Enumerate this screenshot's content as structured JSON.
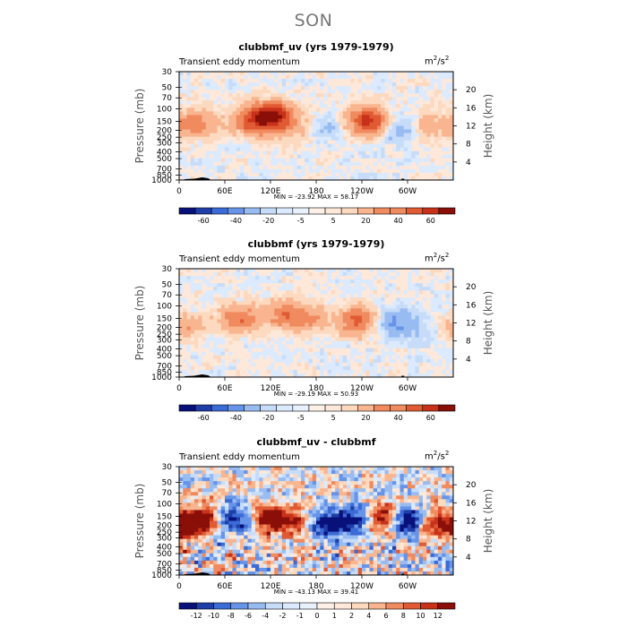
{
  "page": {
    "title": "SON"
  },
  "colors": {
    "blues": [
      "#08107a",
      "#1f3ea8",
      "#3b6bd6",
      "#6794e8",
      "#98bcf2",
      "#c6dcf9"
    ],
    "reds": [
      "#fcd9bf",
      "#f8b58f",
      "#f08a5f",
      "#e05a33",
      "#c8311a",
      "#8a0f08"
    ],
    "frame": "#000000"
  },
  "panels": [
    {
      "title": "clubbmf_uv (yrs 1979-1979)",
      "subtitle": "Transient eddy momentum",
      "units_base": "m",
      "units_exp": "2",
      "units_mid": "/s",
      "minmax": "MIN = -23.92   MAX =  58.17",
      "colorbar_labels": [
        "-60",
        "-40",
        "-20",
        "-5",
        "5",
        "20",
        "40",
        "60"
      ]
    },
    {
      "title": "clubbmf (yrs 1979-1979)",
      "subtitle": "Transient eddy momentum",
      "units_base": "m",
      "units_exp": "2",
      "units_mid": "/s",
      "minmax": "MIN = -29.19   MAX =  50.93",
      "colorbar_labels": [
        "-60",
        "-40",
        "-20",
        "-5",
        "5",
        "20",
        "40",
        "60"
      ]
    },
    {
      "title": "clubbmf_uv - clubbmf",
      "subtitle": "Transient eddy momentum",
      "units_base": "m",
      "units_exp": "2",
      "units_mid": "/s",
      "minmax": "MIN = -43.13   MAX =  39.41",
      "colorbar_labels": [
        "-12",
        "-10",
        "-8",
        "-6",
        "-4",
        "-2",
        "-1",
        "0",
        "1",
        "2",
        "4",
        "6",
        "8",
        "10",
        "12"
      ]
    }
  ],
  "axes": {
    "ylabel": "Pressure  (mb)",
    "y2label": "Height  (km)",
    "pressure_ticks": [
      "30",
      "50",
      "70",
      "100",
      "150",
      "200",
      "250",
      "300",
      "400",
      "500",
      "700",
      "850",
      "1000"
    ],
    "pressure_values": [
      30,
      50,
      70,
      100,
      150,
      200,
      250,
      300,
      400,
      500,
      700,
      850,
      1000
    ],
    "height_ticks": [
      "4",
      "8",
      "12",
      "16",
      "20"
    ],
    "height_values": [
      4,
      8,
      12,
      16,
      20
    ],
    "x_ticks": [
      "0",
      "60E",
      "120E",
      "180",
      "120W",
      "60W"
    ],
    "x_values": [
      0,
      60,
      120,
      180,
      240,
      300
    ],
    "xlim": [
      0,
      360
    ],
    "ylim_pressure": [
      1000,
      30
    ],
    "ylim_height_km": [
      0,
      24
    ]
  },
  "chart_data": [
    {
      "type": "heatmap",
      "title": "clubbmf_uv (yrs 1979-1979)",
      "x": "longitude",
      "ylabel": "Pressure  (mb)",
      "levels": [
        -70,
        -60,
        -50,
        -40,
        -30,
        -20,
        -10,
        -5,
        0,
        5,
        10,
        20,
        30,
        40,
        50,
        60,
        70
      ],
      "min": -23.92,
      "max": 58.17,
      "features": [
        {
          "lon": 20,
          "p": 160,
          "value": 30
        },
        {
          "lon": 100,
          "p": 150,
          "value": 40
        },
        {
          "lon": 125,
          "p": 120,
          "value": 45
        },
        {
          "lon": 150,
          "p": 180,
          "value": 12
        },
        {
          "lon": 195,
          "p": 180,
          "value": -12
        },
        {
          "lon": 248,
          "p": 150,
          "value": 50
        },
        {
          "lon": 290,
          "p": 190,
          "value": -20
        },
        {
          "lon": 325,
          "p": 180,
          "value": 18
        }
      ]
    },
    {
      "type": "heatmap",
      "title": "clubbmf (yrs 1979-1979)",
      "x": "longitude",
      "ylabel": "Pressure  (mb)",
      "levels": [
        -70,
        -60,
        -50,
        -40,
        -30,
        -20,
        -10,
        -5,
        0,
        5,
        10,
        20,
        30,
        40,
        50,
        60,
        70
      ],
      "min": -29.19,
      "max": 50.93,
      "features": [
        {
          "lon": 5,
          "p": 200,
          "value": 18
        },
        {
          "lon": 80,
          "p": 150,
          "value": 30
        },
        {
          "lon": 140,
          "p": 130,
          "value": 25
        },
        {
          "lon": 170,
          "p": 150,
          "value": 18
        },
        {
          "lon": 238,
          "p": 160,
          "value": 40
        },
        {
          "lon": 278,
          "p": 170,
          "value": -25
        },
        {
          "lon": 325,
          "p": 220,
          "value": -10
        }
      ]
    },
    {
      "type": "heatmap",
      "title": "clubbmf_uv - clubbmf",
      "x": "longitude",
      "ylabel": "Pressure  (mb)",
      "levels": [
        -12,
        -10,
        -8,
        -6,
        -4,
        -2,
        -1,
        0,
        1,
        2,
        4,
        6,
        8,
        10,
        12
      ],
      "min": -43.13,
      "max": 39.41,
      "features": [
        {
          "lon": 15,
          "p": 200,
          "value": 14
        },
        {
          "lon": 40,
          "p": 150,
          "value": 10
        },
        {
          "lon": 70,
          "p": 160,
          "value": -14
        },
        {
          "lon": 118,
          "p": 160,
          "value": 14
        },
        {
          "lon": 150,
          "p": 180,
          "value": 10
        },
        {
          "lon": 195,
          "p": 200,
          "value": -14
        },
        {
          "lon": 235,
          "p": 170,
          "value": -12
        },
        {
          "lon": 265,
          "p": 160,
          "value": 14
        },
        {
          "lon": 300,
          "p": 170,
          "value": -14
        },
        {
          "lon": 340,
          "p": 200,
          "value": 12
        }
      ]
    }
  ]
}
